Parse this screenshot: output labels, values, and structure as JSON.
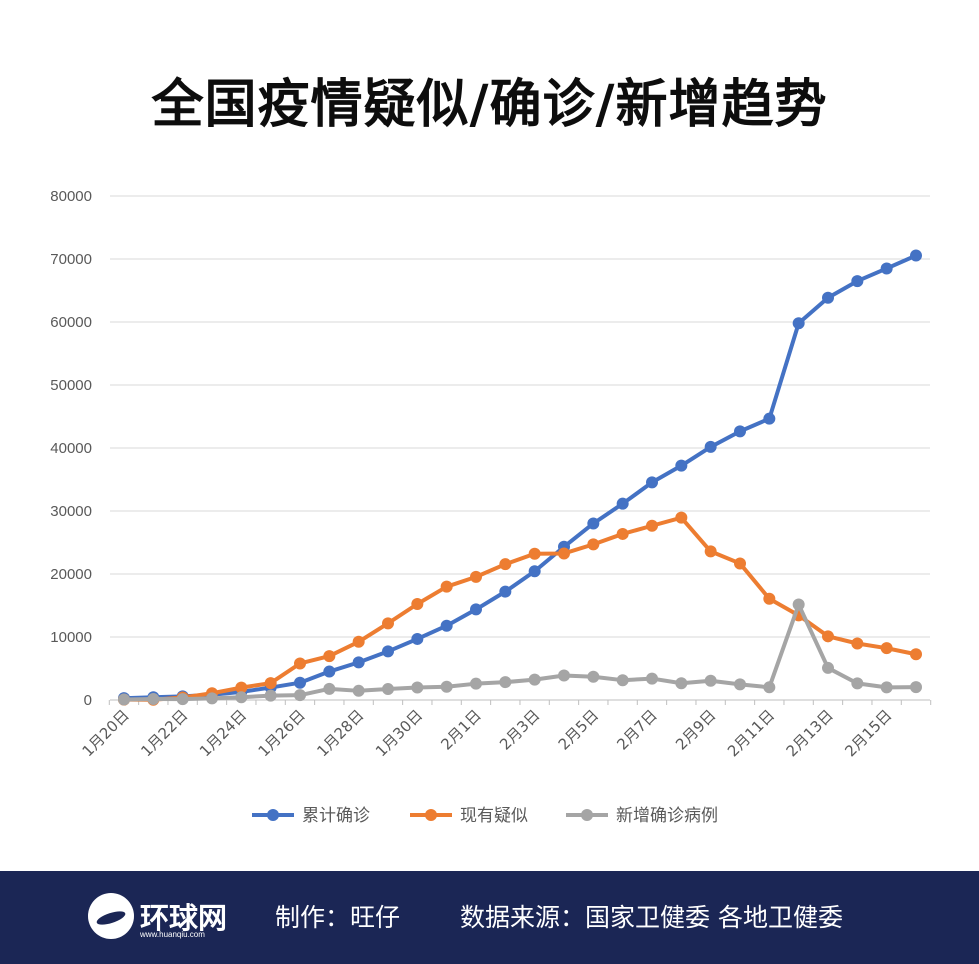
{
  "title": "全国疫情疑似/确诊/新增趋势",
  "footer": {
    "logo_text": "环球网",
    "logo_url": "www.huanqiu.com",
    "credit": "制作：旺仔",
    "source": "数据来源：国家卫健委 各地卫健委"
  },
  "chart_data": {
    "type": "line",
    "x": [
      "1月20日",
      "1月21日",
      "1月22日",
      "1月23日",
      "1月24日",
      "1月25日",
      "1月26日",
      "1月27日",
      "1月28日",
      "1月29日",
      "1月30日",
      "1月31日",
      "2月1日",
      "2月2日",
      "2月3日",
      "2月4日",
      "2月5日",
      "2月6日",
      "2月7日",
      "2月8日",
      "2月9日",
      "2月10日",
      "2月11日",
      "2月12日",
      "2月13日",
      "2月14日",
      "2月15日",
      "2月16日"
    ],
    "tick_labels": [
      "1月20日",
      "1月22日",
      "1月24日",
      "1月26日",
      "1月28日",
      "1月30日",
      "2月1日",
      "2月3日",
      "2月5日",
      "2月7日",
      "2月9日",
      "2月11日",
      "2月13日",
      "2月15日"
    ],
    "ylim": [
      0,
      80000
    ],
    "yticks": [
      0,
      10000,
      20000,
      30000,
      40000,
      50000,
      60000,
      70000,
      80000
    ],
    "grid": true,
    "legend_position": "bottom",
    "series": [
      {
        "name": "累计确诊",
        "color": "#4472c4",
        "values": [
          291,
          440,
          571,
          830,
          1287,
          1975,
          2744,
          4515,
          5974,
          7711,
          9692,
          11791,
          14380,
          17205,
          20438,
          24324,
          28018,
          31161,
          34546,
          37198,
          40171,
          42638,
          44653,
          59804,
          63851,
          66492,
          68500,
          70548
        ]
      },
      {
        "name": "现有疑似",
        "color": "#ed7d31",
        "values": [
          54,
          37,
          393,
          1072,
          1965,
          2684,
          5794,
          6973,
          9239,
          12167,
          15238,
          17988,
          19544,
          21558,
          23214,
          23260,
          24702,
          26359,
          27657,
          28942,
          23589,
          21675,
          16067,
          13435,
          10109,
          8969,
          8228,
          7264
        ]
      },
      {
        "name": "新增确诊病例",
        "color": "#a5a5a5",
        "values": [
          77,
          149,
          131,
          259,
          444,
          688,
          769,
          1771,
          1459,
          1737,
          1982,
          2102,
          2590,
          2829,
          3235,
          3887,
          3694,
          3143,
          3399,
          2656,
          3062,
          2478,
          2015,
          15152,
          5090,
          2641,
          2009,
          2048
        ]
      }
    ]
  }
}
